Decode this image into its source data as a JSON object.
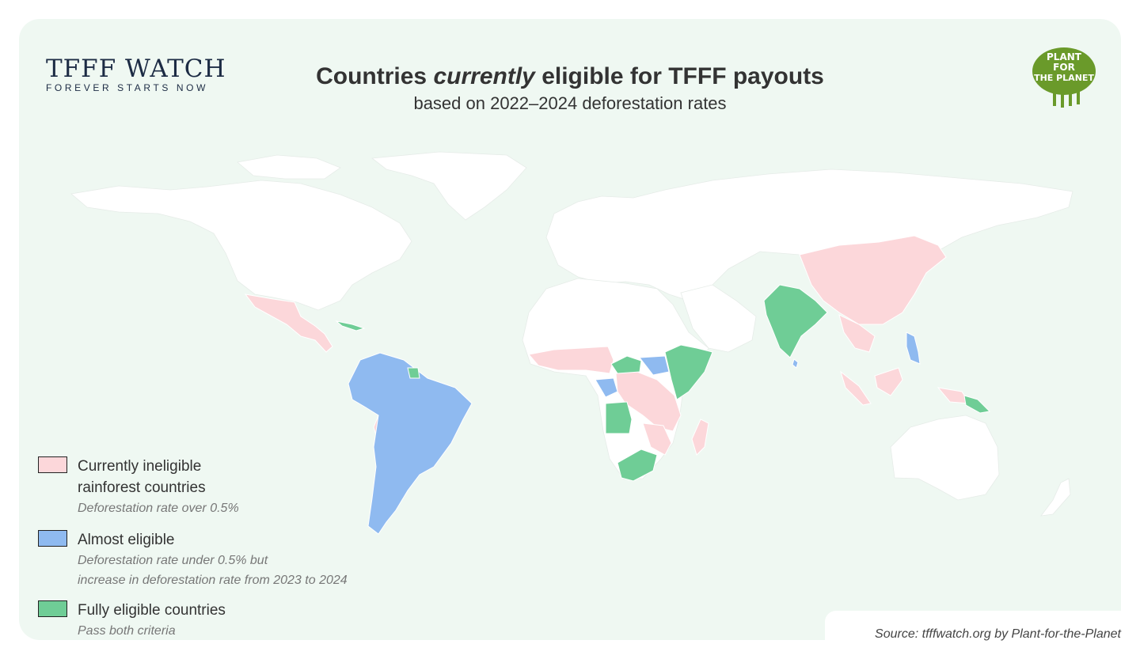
{
  "brand": {
    "name": "TFFF WATCH",
    "tagline": "FOREVER STARTS NOW"
  },
  "title": {
    "before": "Countries ",
    "emphasis": "currently",
    "after": " eligible for TFFF payouts"
  },
  "subtitle": "based on 2022–2024 deforestation rates",
  "logo": {
    "lines": [
      "PLANT",
      "FOR",
      "THE PLANET"
    ],
    "color": "#6a9a2a"
  },
  "colors": {
    "ineligible": "#fcd7da",
    "almost": "#8fbaf0",
    "eligible": "#6fcd96",
    "other_land": "#ffffff",
    "background": "#eff8f2"
  },
  "legend": [
    {
      "key": "ineligible",
      "label": "Currently ineligible rainforest countries",
      "note_lines": [
        "Deforestation rate over 0.5%"
      ]
    },
    {
      "key": "almost",
      "label": "Almost eligible",
      "note_lines": [
        "Deforestation rate under 0.5% but",
        "increase in deforestation rate from 2023 to 2024"
      ]
    },
    {
      "key": "eligible",
      "label": "Fully eligible countries",
      "note_lines": [
        "Pass both criteria"
      ]
    }
  ],
  "source": "Source: tfffwatch.org by Plant-for-the-Planet"
}
